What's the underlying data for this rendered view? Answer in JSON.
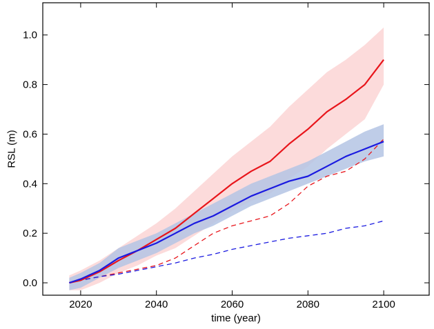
{
  "chart_data": {
    "type": "line",
    "title": "",
    "xlabel": "time (year)",
    "ylabel": "RSL (m)",
    "xlim": [
      2010,
      2112
    ],
    "ylim": [
      -0.05,
      1.13
    ],
    "xticks": [
      2020,
      2040,
      2060,
      2080,
      2100
    ],
    "xtick_labels": [
      "2020",
      "2040",
      "2060",
      "2080",
      "2100"
    ],
    "yticks": [
      0.0,
      0.2,
      0.4,
      0.6,
      0.8,
      1.0
    ],
    "ytick_labels": [
      "0.0",
      "0.2",
      "0.4",
      "0.6",
      "0.8",
      "1.0"
    ],
    "grid": false,
    "legend": "none",
    "colors": {
      "red": "#e8151b",
      "red_band": "#fbd5d5",
      "blue": "#1a1ae0",
      "blue_band": "#b4c4e4"
    },
    "series": [
      {
        "style": "solid",
        "color": "red",
        "band_color": "red_band",
        "x": [
          2017,
          2020,
          2025,
          2030,
          2035,
          2040,
          2045,
          2050,
          2055,
          2060,
          2065,
          2070,
          2075,
          2080,
          2085,
          2090,
          2095,
          2100
        ],
        "y": [
          0.0,
          0.01,
          0.045,
          0.09,
          0.13,
          0.175,
          0.22,
          0.28,
          0.34,
          0.4,
          0.45,
          0.49,
          0.56,
          0.62,
          0.69,
          0.74,
          0.8,
          0.9
        ],
        "upper": [
          0.03,
          0.05,
          0.09,
          0.14,
          0.19,
          0.24,
          0.3,
          0.37,
          0.44,
          0.51,
          0.57,
          0.63,
          0.71,
          0.78,
          0.85,
          0.9,
          0.96,
          1.03
        ],
        "lower": [
          -0.03,
          -0.03,
          0.0,
          0.04,
          0.07,
          0.11,
          0.14,
          0.19,
          0.24,
          0.29,
          0.33,
          0.36,
          0.42,
          0.47,
          0.54,
          0.6,
          0.66,
          0.8
        ]
      },
      {
        "style": "solid",
        "color": "blue",
        "band_color": "blue_band",
        "x": [
          2017,
          2020,
          2025,
          2030,
          2035,
          2040,
          2045,
          2050,
          2055,
          2060,
          2065,
          2070,
          2075,
          2080,
          2085,
          2090,
          2095,
          2100
        ],
        "y": [
          0.0,
          0.015,
          0.05,
          0.1,
          0.13,
          0.16,
          0.2,
          0.24,
          0.27,
          0.31,
          0.35,
          0.38,
          0.41,
          0.43,
          0.47,
          0.51,
          0.54,
          0.57
        ],
        "upper": [
          0.02,
          0.04,
          0.08,
          0.14,
          0.17,
          0.2,
          0.24,
          0.28,
          0.32,
          0.36,
          0.4,
          0.43,
          0.46,
          0.49,
          0.53,
          0.57,
          0.61,
          0.64
        ],
        "lower": [
          -0.03,
          -0.02,
          0.02,
          0.06,
          0.09,
          0.12,
          0.16,
          0.2,
          0.23,
          0.27,
          0.31,
          0.34,
          0.37,
          0.4,
          0.43,
          0.46,
          0.49,
          0.51
        ]
      },
      {
        "style": "dashed",
        "color": "red",
        "x": [
          2017,
          2020,
          2025,
          2030,
          2035,
          2040,
          2045,
          2050,
          2055,
          2060,
          2065,
          2070,
          2075,
          2080,
          2085,
          2090,
          2095,
          2100
        ],
        "y": [
          0.0,
          0.01,
          0.025,
          0.04,
          0.055,
          0.07,
          0.1,
          0.15,
          0.2,
          0.23,
          0.25,
          0.27,
          0.32,
          0.39,
          0.43,
          0.45,
          0.5,
          0.58
        ]
      },
      {
        "style": "dashed",
        "color": "blue",
        "x": [
          2017,
          2020,
          2025,
          2030,
          2035,
          2040,
          2045,
          2050,
          2055,
          2060,
          2065,
          2070,
          2075,
          2080,
          2085,
          2090,
          2095,
          2100
        ],
        "y": [
          0.0,
          0.01,
          0.025,
          0.035,
          0.05,
          0.065,
          0.08,
          0.1,
          0.115,
          0.135,
          0.15,
          0.165,
          0.18,
          0.19,
          0.2,
          0.22,
          0.23,
          0.25
        ]
      }
    ]
  }
}
